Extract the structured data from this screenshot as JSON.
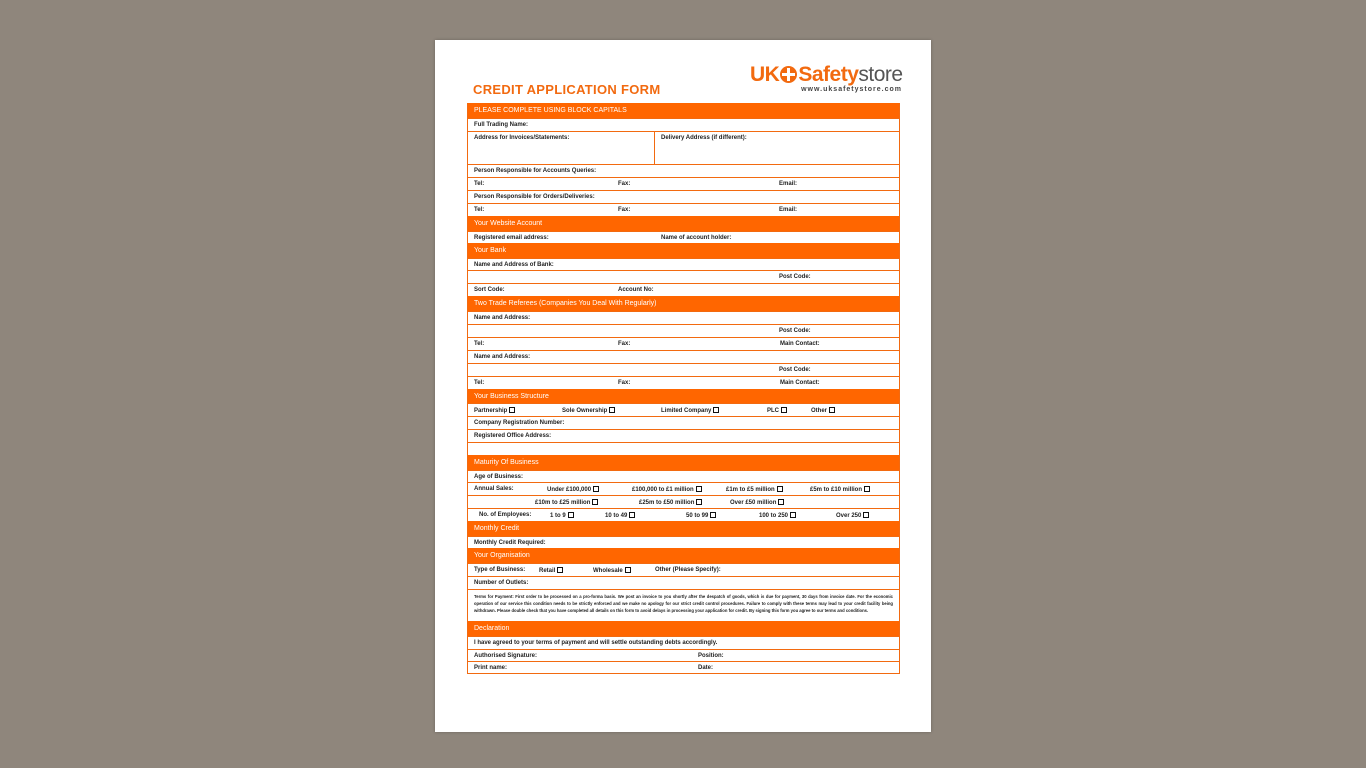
{
  "title": "CREDIT APPLICATION FORM",
  "logo": {
    "uk": "UK",
    "brand": "Safety",
    "store": "store",
    "url": "www.uksafetystore.com"
  },
  "colors": {
    "accent": "#ff6600",
    "background": "#8f867c",
    "page": "#ffffff"
  },
  "rows": [
    {
      "kind": "header",
      "cells": [
        {
          "label": "PLEASE COMPLETE USING BLOCK CAPITALS"
        }
      ]
    },
    {
      "kind": "row",
      "cells": [
        {
          "label": "Full Trading Name:"
        }
      ]
    },
    {
      "kind": "split",
      "cells": [
        {
          "label": "Address for Invoices/Statements:"
        },
        {
          "label": "Delivery Address (if different):"
        }
      ]
    },
    {
      "kind": "row",
      "cells": [
        {
          "label": "Person Responsible for Accounts Queries:"
        }
      ]
    },
    {
      "kind": "row",
      "cells": [
        {
          "label": "Tel:"
        },
        {
          "label": "Fax:"
        },
        {
          "label": "Email:"
        }
      ]
    },
    {
      "kind": "row",
      "cells": [
        {
          "label": "Person Responsible for Orders/Deliveries:"
        }
      ]
    },
    {
      "kind": "row",
      "cells": [
        {
          "label": "Tel:"
        },
        {
          "label": "Fax:"
        },
        {
          "label": "Email:"
        }
      ]
    },
    {
      "kind": "header",
      "cells": [
        {
          "label": "Your Website Account"
        }
      ]
    },
    {
      "kind": "row",
      "cells": [
        {
          "label": "Registered email address:"
        },
        {
          "label": "Name of account holder:"
        }
      ]
    },
    {
      "kind": "header",
      "cells": [
        {
          "label": "Your Bank"
        }
      ]
    },
    {
      "kind": "row",
      "cells": [
        {
          "label": "Name and Address of Bank:"
        }
      ]
    },
    {
      "kind": "row",
      "cells": [
        {
          "label": "Post Code:"
        }
      ]
    },
    {
      "kind": "row",
      "cells": [
        {
          "label": "Sort Code:"
        },
        {
          "label": "Account No:"
        }
      ]
    },
    {
      "kind": "header",
      "cells": [
        {
          "label": "Two Trade Referees (Companies You Deal With Regularly)"
        }
      ]
    },
    {
      "kind": "row",
      "cells": [
        {
          "label": "Name and Address:"
        }
      ]
    },
    {
      "kind": "row",
      "cells": [
        {
          "label": "Post Code:"
        }
      ]
    },
    {
      "kind": "row",
      "cells": [
        {
          "label": "Tel:"
        },
        {
          "label": "Fax:"
        },
        {
          "label": "Main Contact:"
        }
      ]
    },
    {
      "kind": "row",
      "cells": [
        {
          "label": "Name and Address:"
        }
      ]
    },
    {
      "kind": "row",
      "cells": [
        {
          "label": "Post Code:"
        }
      ]
    },
    {
      "kind": "row",
      "cells": [
        {
          "label": "Tel:"
        },
        {
          "label": "Fax:"
        },
        {
          "label": "Main Contact:"
        }
      ]
    },
    {
      "kind": "header",
      "cells": [
        {
          "label": "Your Business Structure"
        }
      ]
    },
    {
      "kind": "row",
      "cells": [
        {
          "label": "Partnership",
          "checkbox": true,
          "checked": false
        },
        {
          "label": "Sole Ownership",
          "checkbox": true,
          "checked": false
        },
        {
          "label": "Limited Company",
          "checkbox": true,
          "checked": false
        },
        {
          "label": "PLC",
          "checkbox": true,
          "checked": false
        },
        {
          "label": "Other",
          "checkbox": true,
          "checked": false
        }
      ]
    },
    {
      "kind": "row",
      "cells": [
        {
          "label": "Company Registration Number:"
        }
      ]
    },
    {
      "kind": "row",
      "cells": [
        {
          "label": "Registered Office Address:"
        }
      ]
    },
    {
      "kind": "row",
      "cells": []
    },
    {
      "kind": "header",
      "cells": [
        {
          "label": "Maturity Of Business"
        }
      ]
    },
    {
      "kind": "row",
      "cells": [
        {
          "label": "Age of Business:"
        }
      ]
    },
    {
      "kind": "row",
      "cells": [
        {
          "label": "Annual Sales:"
        },
        {
          "label": "Under £100,000",
          "checkbox": true,
          "checked": false
        },
        {
          "label": "£100,000 to £1 million",
          "checkbox": true,
          "checked": false
        },
        {
          "label": "£1m to £5 million",
          "checkbox": true,
          "checked": false
        },
        {
          "label": "£5m to £10 million",
          "checkbox": true,
          "checked": false
        }
      ]
    },
    {
      "kind": "row",
      "cells": [
        {
          "label": "£10m to £25 million",
          "checkbox": true,
          "checked": false
        },
        {
          "label": "£25m to £50 million",
          "checkbox": true,
          "checked": false
        },
        {
          "label": "Over £50 million",
          "checkbox": true,
          "checked": false
        }
      ]
    },
    {
      "kind": "row",
      "cells": [
        {
          "label": "No. of Employees:"
        },
        {
          "label": "1 to 9",
          "checkbox": true,
          "checked": false
        },
        {
          "label": "10 to 49",
          "checkbox": true,
          "checked": false
        },
        {
          "label": "50 to 99",
          "checkbox": true,
          "checked": false
        },
        {
          "label": "100 to 250",
          "checkbox": true,
          "checked": false
        },
        {
          "label": "Over 250",
          "checkbox": true,
          "checked": false
        }
      ]
    },
    {
      "kind": "header",
      "cells": [
        {
          "label": "Monthly Credit"
        }
      ]
    },
    {
      "kind": "row",
      "cells": [
        {
          "label": "Monthly Credit Required:"
        }
      ]
    },
    {
      "kind": "header",
      "cells": [
        {
          "label": "Your Organisation"
        }
      ]
    },
    {
      "kind": "row",
      "cells": [
        {
          "label": "Type of Business:"
        },
        {
          "label": "Retail",
          "checkbox": true,
          "checked": false
        },
        {
          "label": "Wholesale",
          "checkbox": true,
          "checked": false
        },
        {
          "label": "Other (Please Specify):"
        }
      ]
    },
    {
      "kind": "row",
      "cells": [
        {
          "label": "Number of Outlets:"
        }
      ]
    },
    {
      "kind": "terms",
      "cells": [
        {
          "label": "Terms for Payment: First order to be processed on a pro-forma basis. We post an invoice to you shortly after the despatch of goods, which is due for payment, 30 days from invoice date. For the economic operation of our service this condition needs to be strictly enforced and we make no apology for our strict credit control procedures. Failure to comply with these terms may lead to your credit facility being withdrawn. Please double check that you have completed all details on this form to avoid delays in processing your application for credit. By signing this form you agree to our terms and conditions."
        }
      ]
    },
    {
      "kind": "header",
      "cells": [
        {
          "label": "Declaration"
        }
      ]
    },
    {
      "kind": "row",
      "cells": [
        {
          "label": "I have agreed to your terms of payment and will settle outstanding debts accordingly."
        }
      ]
    },
    {
      "kind": "row",
      "cells": [
        {
          "label": "Authorised Signature:"
        },
        {
          "label": "Position:"
        }
      ]
    },
    {
      "kind": "row",
      "cells": [
        {
          "label": "Print name:"
        },
        {
          "label": "Date:"
        }
      ]
    }
  ]
}
